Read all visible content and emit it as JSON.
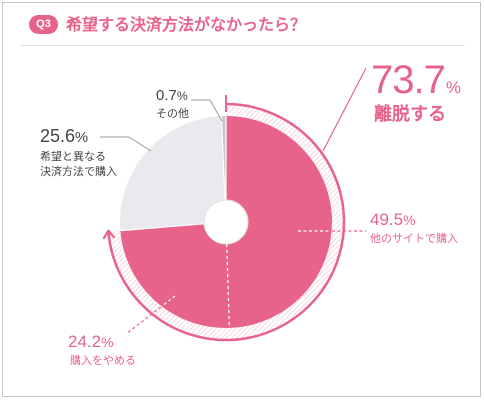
{
  "header": {
    "badge": "Q3"
  },
  "colors": {
    "accent": "#e8638a",
    "text": "#454545",
    "hatch": "#f4b6c8",
    "leader": "#9b9b9b"
  },
  "chart_data": {
    "type": "pie",
    "donut": true,
    "title": "希望する決済方法がなかったら？",
    "unit": "%",
    "slices": [
      {
        "label": "他のサイトで購入",
        "value": 49.5,
        "color": "#e8638a"
      },
      {
        "label": "購入をやめる",
        "value": 24.2,
        "color": "#e8638a"
      },
      {
        "label": "希望と異なる\n決済方法で購入",
        "value": 25.6,
        "color": "#e9e9ee"
      },
      {
        "label": "その他",
        "value": 0.7,
        "color": "#c6c6cc"
      }
    ],
    "annotation": {
      "value": 73.7,
      "label": "離脱する"
    }
  }
}
